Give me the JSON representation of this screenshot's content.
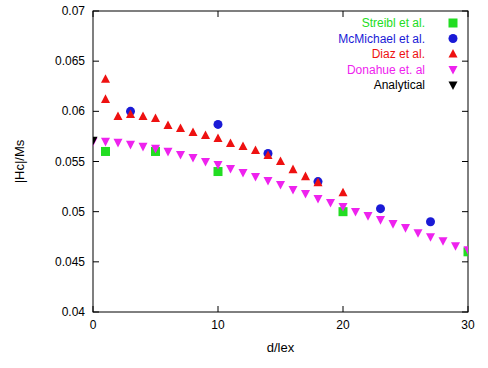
{
  "chart_data": {
    "type": "scatter",
    "x_label": "d/lex",
    "y_label": "|Hc|/Ms",
    "xlim": [
      0,
      30
    ],
    "xticks": [
      0,
      10,
      20,
      30
    ],
    "ylim": [
      0.04,
      0.07
    ],
    "yticks": [
      0.04,
      0.045,
      0.05,
      0.055,
      0.06,
      0.065,
      0.07
    ],
    "legend": "top-right",
    "series": [
      {
        "name": "Streibl et al.",
        "color": "#22dd22",
        "marker": "square",
        "x": [
          1,
          5,
          10,
          20,
          30
        ],
        "values": [
          0.056,
          0.056,
          0.054,
          0.05,
          0.046
        ]
      },
      {
        "name": "McMichael et al.",
        "color": "#1a1ad6",
        "marker": "circle",
        "x": [
          3,
          10,
          14,
          18,
          23,
          27
        ],
        "values": [
          0.06,
          0.0587,
          0.0558,
          0.053,
          0.0503,
          0.049
        ]
      },
      {
        "name": "Diaz et al.",
        "color": "#ee1111",
        "marker": "triangle-up",
        "x": [
          1,
          1,
          2,
          3,
          4,
          5,
          6,
          7,
          8,
          9,
          10,
          11,
          12,
          13,
          14,
          15,
          16,
          17,
          18,
          20
        ],
        "values": [
          0.0632,
          0.0612,
          0.0595,
          0.0597,
          0.0595,
          0.0593,
          0.0586,
          0.0583,
          0.0579,
          0.0576,
          0.0573,
          0.0568,
          0.0565,
          0.0561,
          0.0556,
          0.055,
          0.0542,
          0.0535,
          0.0529,
          0.0519
        ]
      },
      {
        "name": "Donahue et. al",
        "color": "#ee22ee",
        "marker": "triangle-down",
        "x": [
          0,
          1,
          2,
          3,
          4,
          5,
          6,
          7,
          8,
          9,
          10,
          11,
          12,
          13,
          14,
          15,
          16,
          17,
          18,
          19,
          20,
          21,
          22,
          23,
          24,
          25,
          26,
          27,
          28,
          29,
          30
        ],
        "values": [
          0.057,
          0.057,
          0.0569,
          0.0567,
          0.0565,
          0.0563,
          0.056,
          0.0557,
          0.0554,
          0.055,
          0.0547,
          0.0543,
          0.0539,
          0.0535,
          0.0531,
          0.0527,
          0.0522,
          0.0518,
          0.0513,
          0.0509,
          0.0505,
          0.05,
          0.0496,
          0.0492,
          0.0488,
          0.0484,
          0.0479,
          0.0475,
          0.0471,
          0.0466,
          0.0462
        ]
      },
      {
        "name": "Analytical",
        "color": "#000000",
        "marker": "triangle-down",
        "x": [
          0
        ],
        "values": [
          0.0571
        ]
      }
    ]
  }
}
